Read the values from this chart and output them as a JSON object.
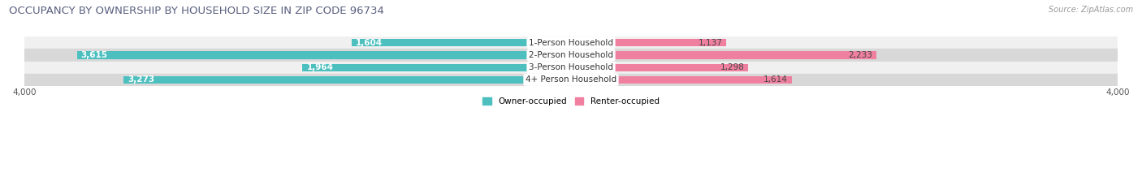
{
  "title": "OCCUPANCY BY OWNERSHIP BY HOUSEHOLD SIZE IN ZIP CODE 96734",
  "source": "Source: ZipAtlas.com",
  "categories": [
    "1-Person Household",
    "2-Person Household",
    "3-Person Household",
    "4+ Person Household"
  ],
  "owner_values": [
    1604,
    3615,
    1964,
    3273
  ],
  "renter_values": [
    1137,
    2233,
    1298,
    1614
  ],
  "max_scale": 4000,
  "owner_color": "#4DBFBF",
  "renter_color": "#F080A0",
  "row_bg_colors": [
    "#F0F0F0",
    "#D8D8D8"
  ],
  "title_color": "#5A6080",
  "title_fontsize": 9.5,
  "label_fontsize": 7.5,
  "tick_fontsize": 7.5,
  "source_fontsize": 7,
  "legend_fontsize": 7.5,
  "bar_height": 0.6,
  "background_color": "#FFFFFF",
  "owner_label_inside_threshold": 800,
  "renter_label_inside_threshold": 800
}
